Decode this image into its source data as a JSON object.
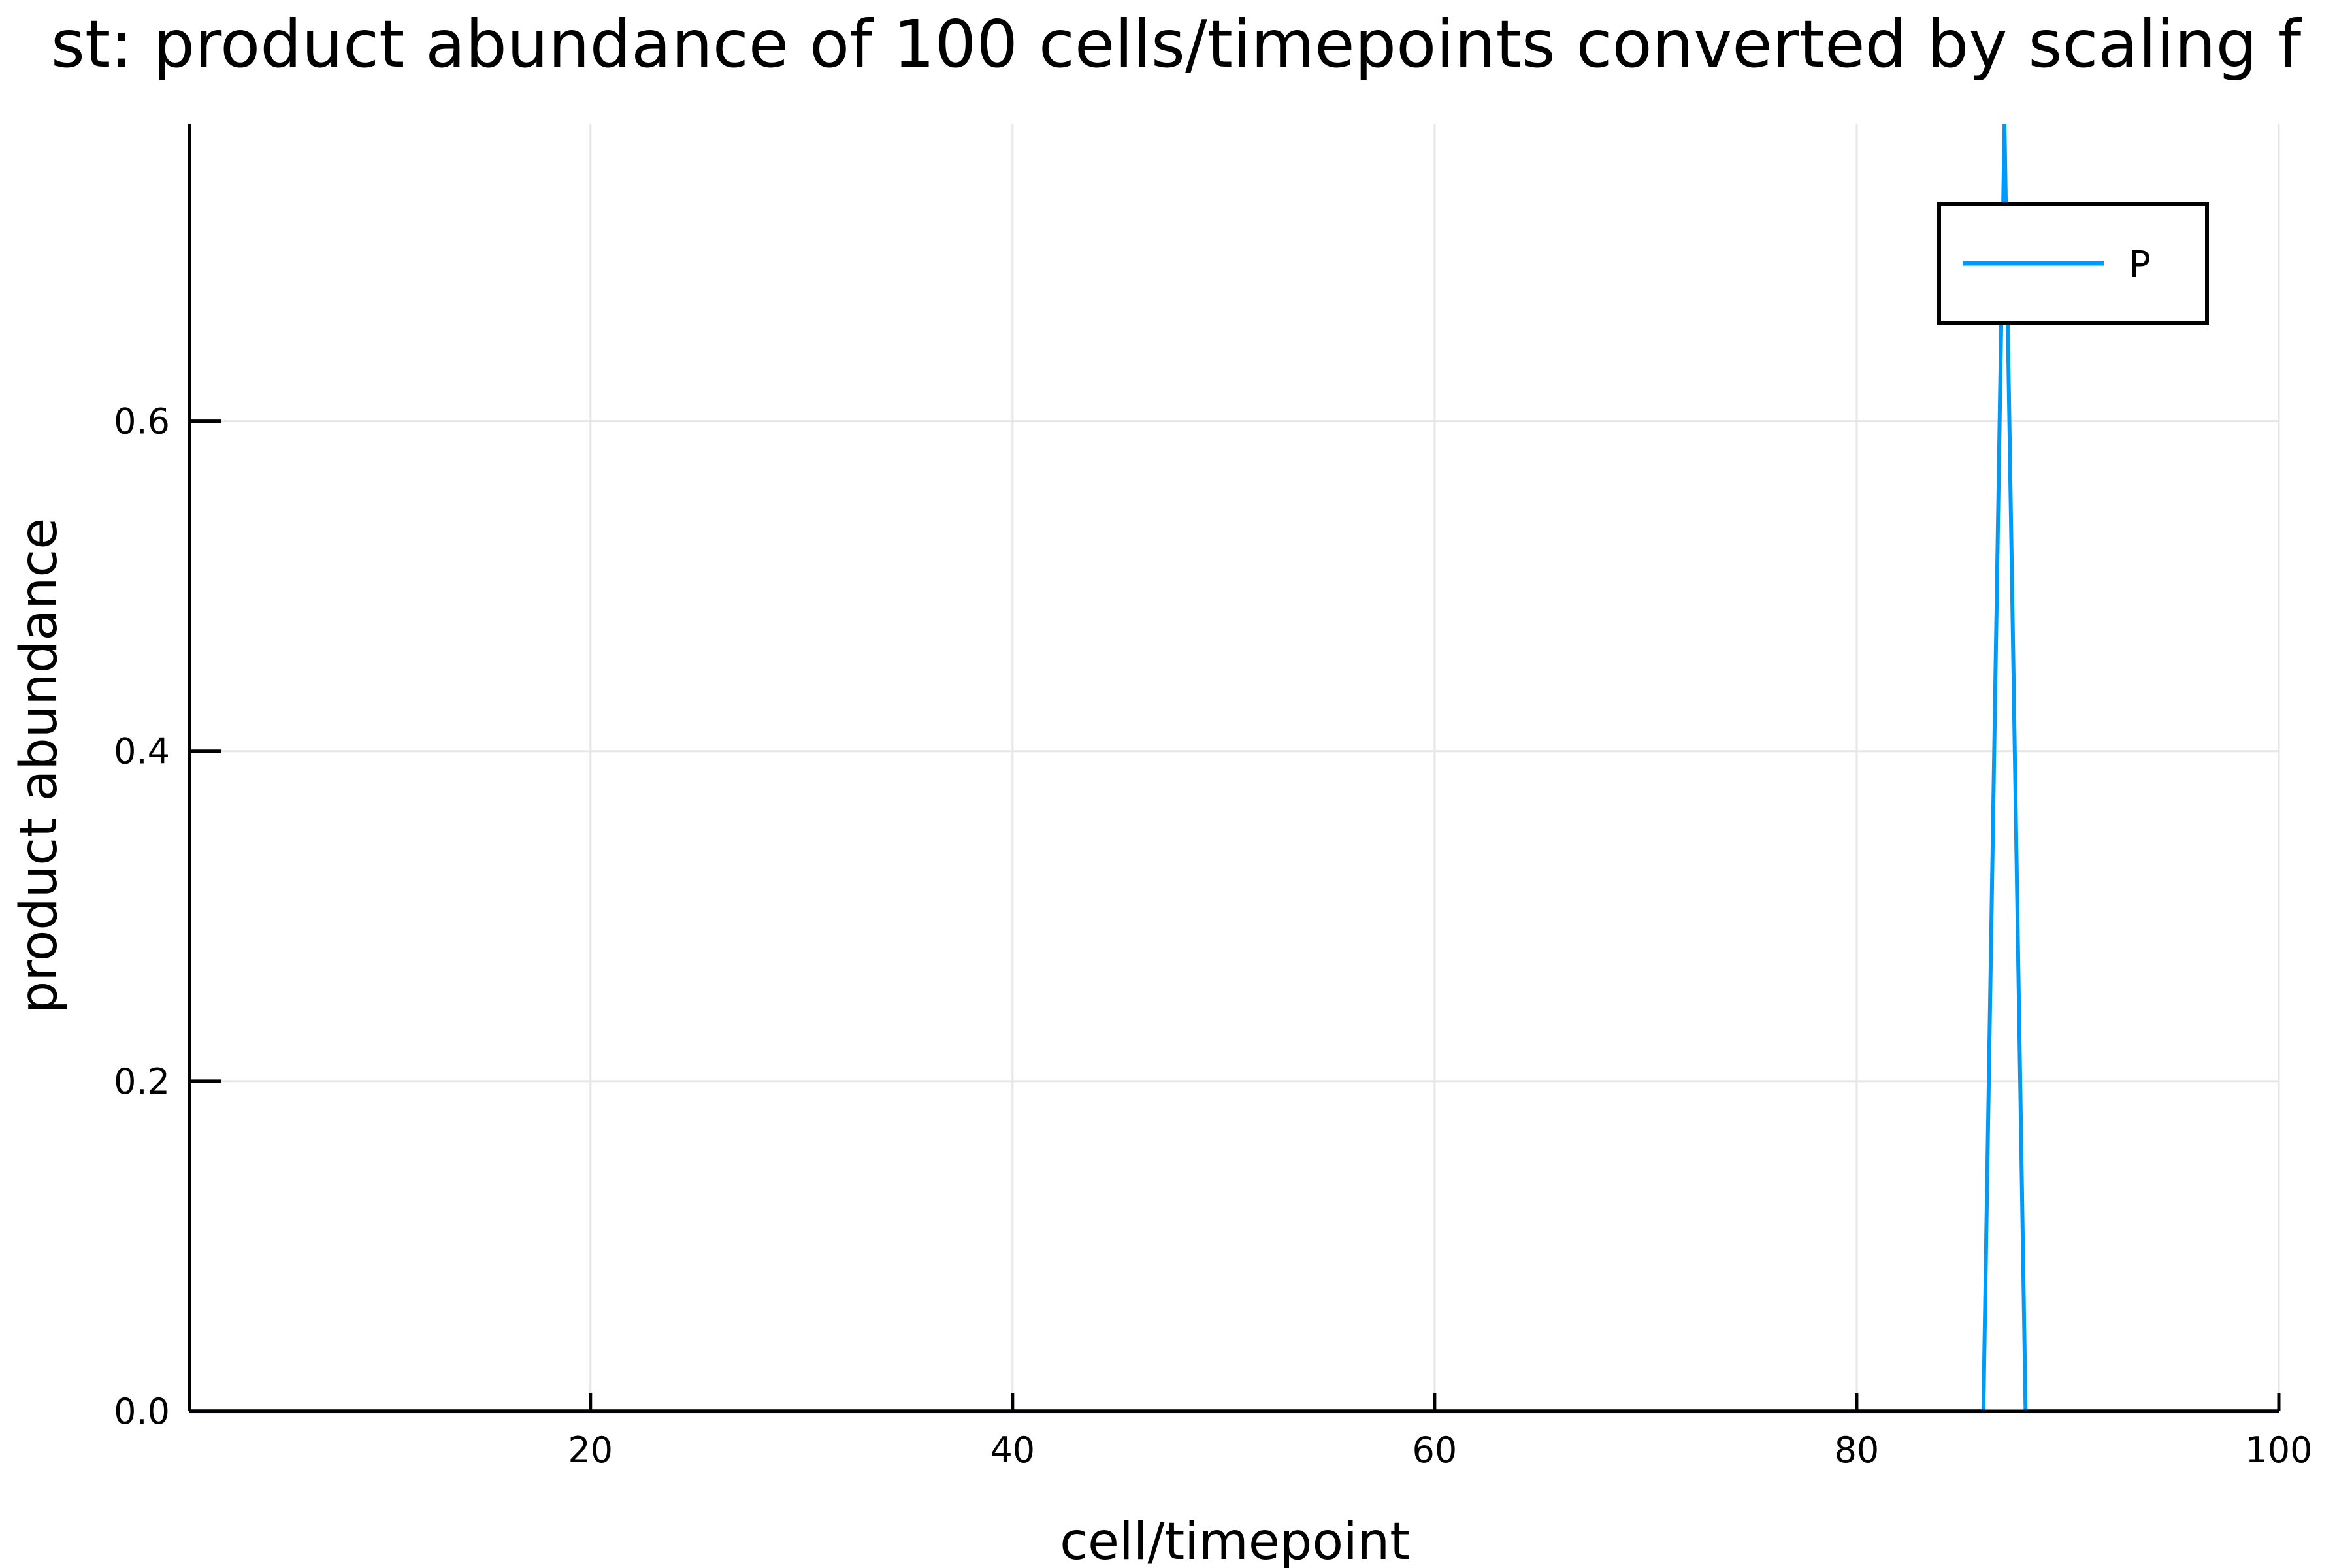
{
  "chart_data": {
    "type": "line",
    "title": "st: product abundance of 100 cells/timepoints converted by scaling f",
    "xlabel": "cell/timepoint",
    "ylabel": "product abundance",
    "xlim": [
      1,
      100
    ],
    "ylim": [
      0,
      0.78
    ],
    "xticks": [
      20,
      40,
      60,
      80,
      100
    ],
    "xtick_labels": [
      "20",
      "40",
      "60",
      "80",
      "100"
    ],
    "yticks": [
      0,
      0.2,
      0.4,
      0.6
    ],
    "ytick_labels": [
      "0.0",
      "0.2",
      "0.4",
      "0.6"
    ],
    "grid": true,
    "legend_position": "top-right",
    "colors": {
      "series": "#009AF9",
      "grid": "#E6E6E6",
      "axis": "#000000"
    },
    "series": [
      {
        "name": "P",
        "x": [
          1,
          86,
          87,
          88,
          100
        ],
        "y": [
          0,
          0,
          0.78,
          0,
          0
        ]
      }
    ]
  }
}
